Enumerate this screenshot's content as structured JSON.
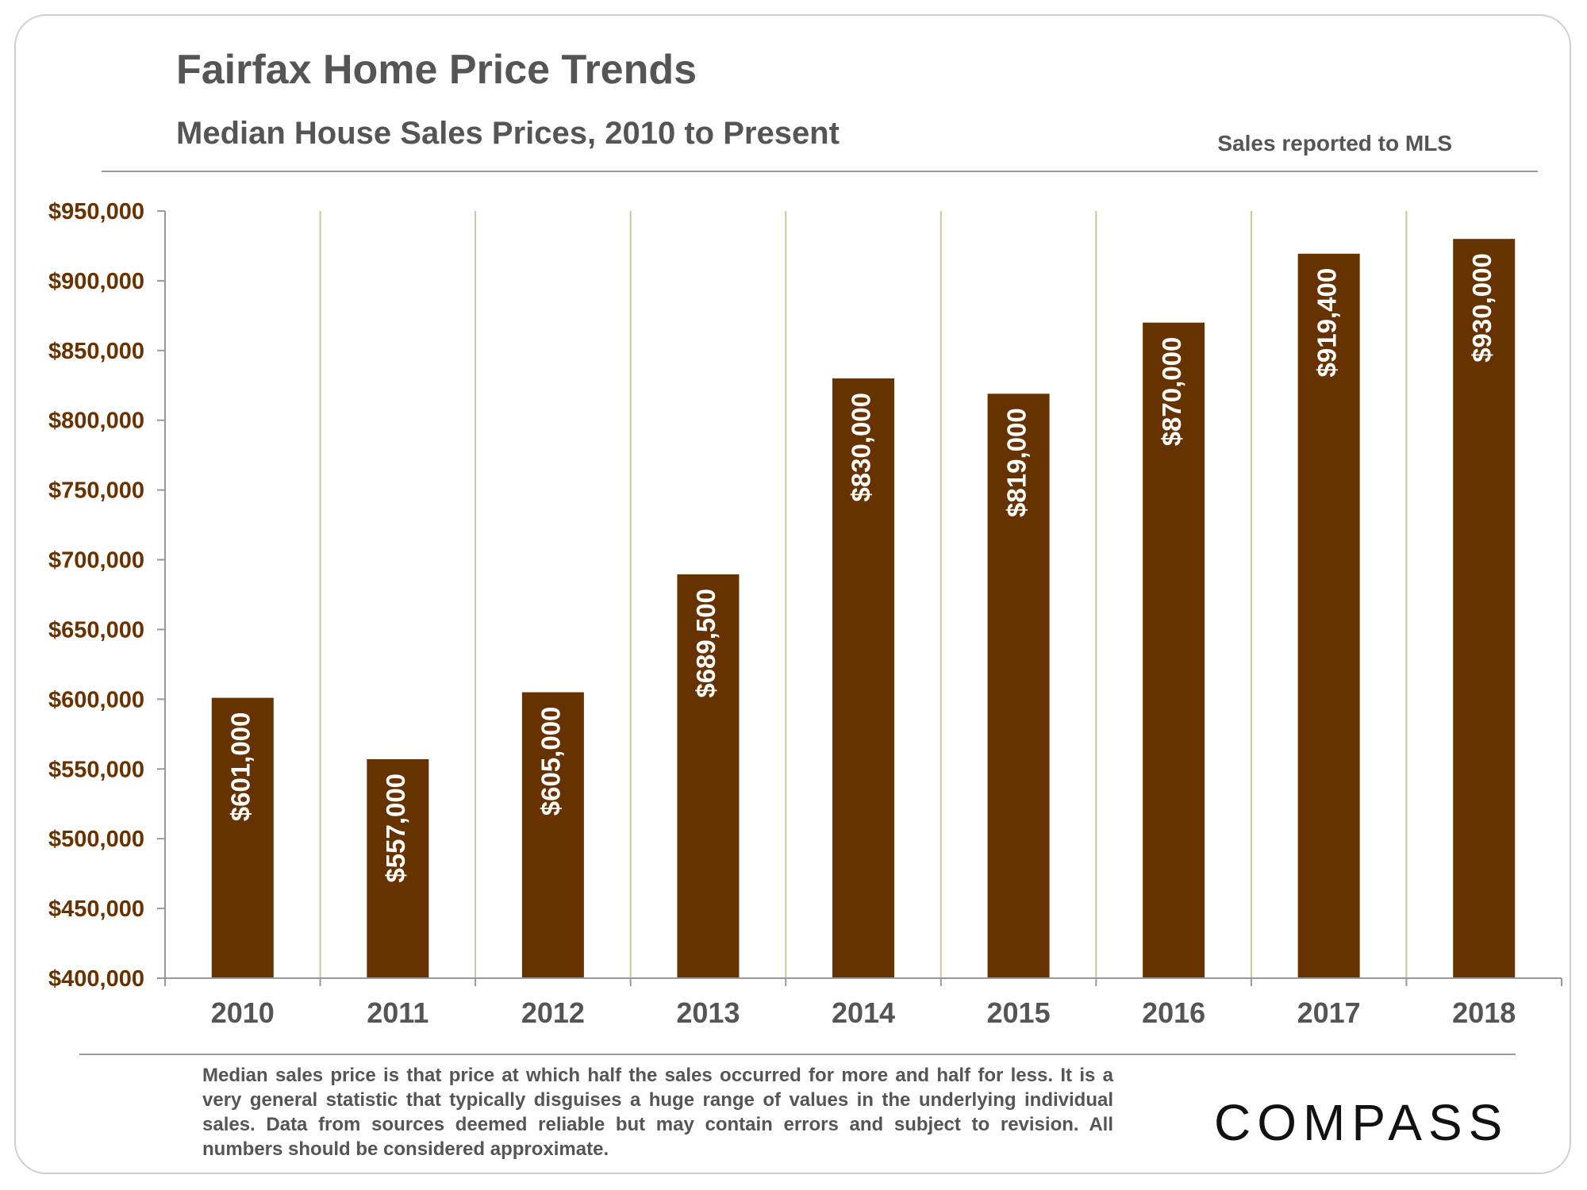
{
  "header": {
    "title": "Fairfax Home Price Trends",
    "subtitle": "Median House Sales Prices, 2010 to Present",
    "source_note": "Sales reported to MLS"
  },
  "footer": {
    "note": "Median sales price is that price at which half the sales occurred for more and half for less. It is a very general statistic that typically disguises a huge range of values in the underlying individual sales. Data from sources deemed reliable but may contain errors and subject to revision. All numbers should be considered approximate.",
    "logo_text": "COMPASS"
  },
  "colors": {
    "bar": "#663300",
    "axis_text": "#663300",
    "grid": "#c8c8a0",
    "bar_label": "#ffffff",
    "category_text": "#555555"
  },
  "chart_data": {
    "type": "bar",
    "title": "Fairfax Home Price Trends",
    "subtitle": "Median House Sales Prices, 2010 to Present",
    "xlabel": "",
    "ylabel": "",
    "ylim": [
      400000,
      950000
    ],
    "ytick_step": 50000,
    "yticks": [
      "$400,000",
      "$450,000",
      "$500,000",
      "$550,000",
      "$600,000",
      "$650,000",
      "$700,000",
      "$750,000",
      "$800,000",
      "$850,000",
      "$900,000",
      "$950,000"
    ],
    "categories": [
      "2010",
      "2011",
      "2012",
      "2013",
      "2014",
      "2015",
      "2016",
      "2017",
      "2018"
    ],
    "values": [
      601000,
      557000,
      605000,
      689500,
      830000,
      819000,
      870000,
      919400,
      930000
    ],
    "data_labels": [
      "$601,000",
      "$557,000",
      "$605,000",
      "$689,500",
      "$830,000",
      "$819,000",
      "$870,000",
      "$919,400",
      "$930,000"
    ],
    "grid": true,
    "legend": false,
    "data_label_orientation": "vertical"
  }
}
